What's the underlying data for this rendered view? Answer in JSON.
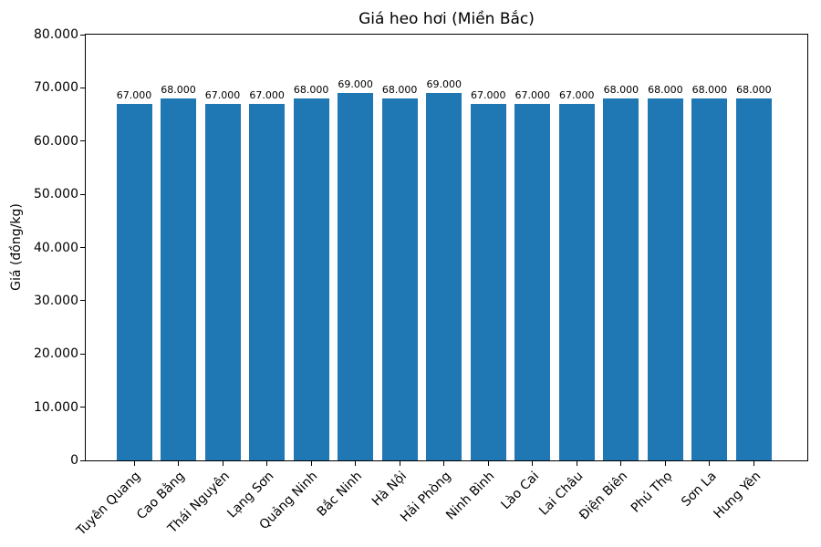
{
  "chart_data": {
    "type": "bar",
    "title": "Giá heo hơi (Miền Bắc)",
    "xlabel": "",
    "ylabel": "Giá (đồng/kg)",
    "categories": [
      "Tuyên Quang",
      "Cao Bằng",
      "Thái Nguyên",
      "Lạng Sơn",
      "Quảng Ninh",
      "Bắc Ninh",
      "Hà Nội",
      "Hải Phòng",
      "Ninh Bình",
      "Lào Cai",
      "Lai Châu",
      "Điện Biên",
      "Phú Thọ",
      "Sơn La",
      "Hưng Yên"
    ],
    "values": [
      67000,
      68000,
      67000,
      67000,
      68000,
      69000,
      68000,
      69000,
      67000,
      67000,
      67000,
      68000,
      68000,
      68000,
      68000
    ],
    "value_labels": [
      "67.000",
      "68.000",
      "67.000",
      "67.000",
      "68.000",
      "69.000",
      "68.000",
      "69.000",
      "67.000",
      "67.000",
      "67.000",
      "68.000",
      "68.000",
      "68.000",
      "68.000"
    ],
    "ylim": [
      0,
      80000
    ],
    "yticks": [
      0,
      10000,
      20000,
      30000,
      40000,
      50000,
      60000,
      70000,
      80000
    ],
    "ytick_labels": [
      "0",
      "10.000",
      "20.000",
      "30.000",
      "40.000",
      "50.000",
      "60.000",
      "70.000",
      "80.000"
    ],
    "bar_color": "#1f77b4",
    "grid": false,
    "legend": null
  }
}
